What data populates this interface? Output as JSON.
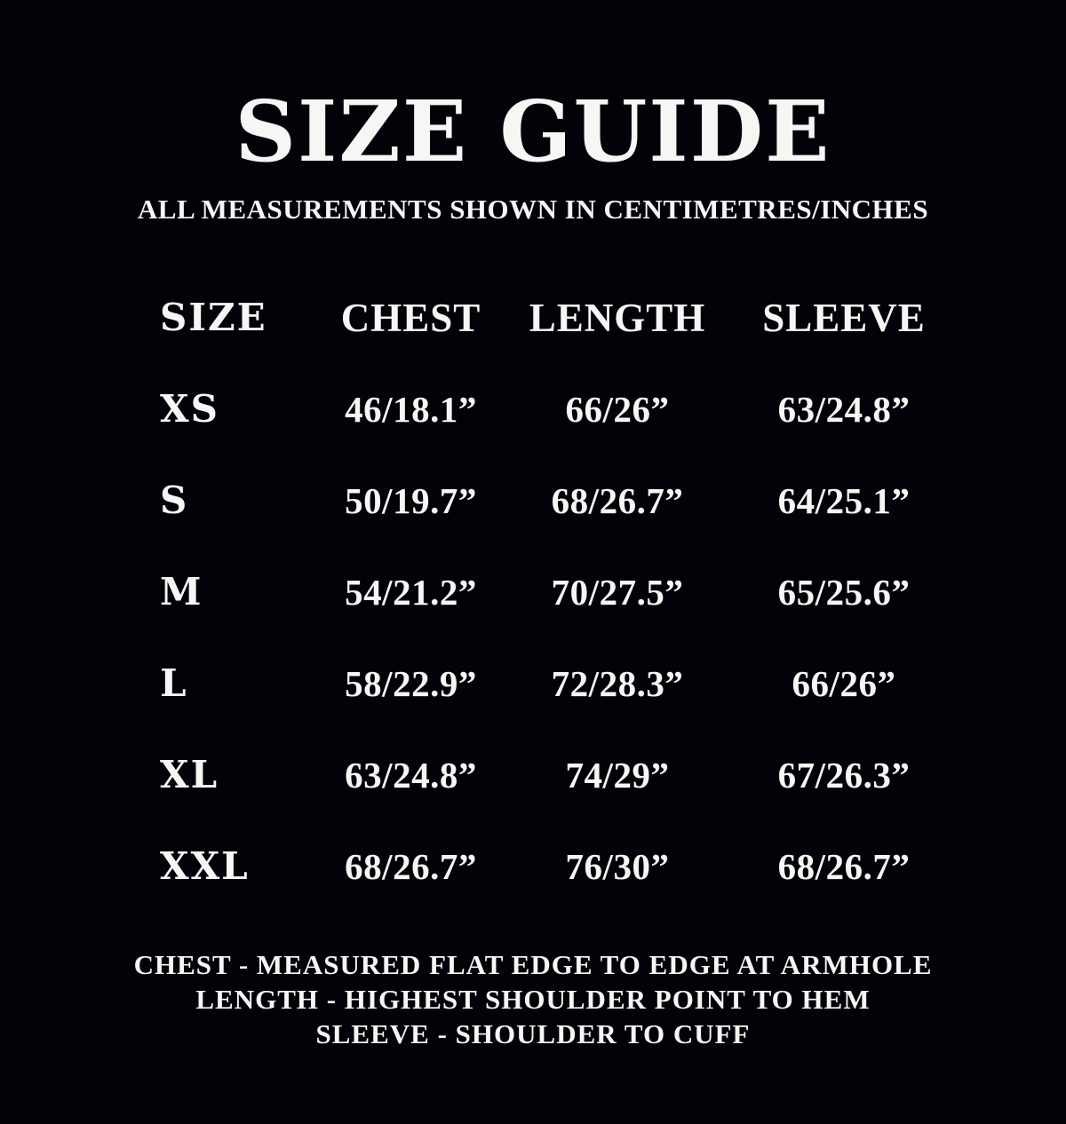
{
  "colors": {
    "background": "#020209",
    "text": "#f6f6f4"
  },
  "header": {
    "title": "SIZE GUIDE",
    "subtitle": "ALL MEASUREMENTS SHOWN IN CENTIMETRES/INCHES"
  },
  "table": {
    "columns": [
      "SIZE",
      "CHEST",
      "LENGTH",
      "SLEEVE"
    ],
    "rows": [
      {
        "size": "XS",
        "chest": "46/18.1”",
        "length": "66/26”",
        "sleeve": "63/24.8”"
      },
      {
        "size": "S",
        "chest": "50/19.7”",
        "length": "68/26.7”",
        "sleeve": "64/25.1”"
      },
      {
        "size": "M",
        "chest": "54/21.2”",
        "length": "70/27.5”",
        "sleeve": "65/25.6”"
      },
      {
        "size": "L",
        "chest": "58/22.9”",
        "length": "72/28.3”",
        "sleeve": "66/26”"
      },
      {
        "size": "XL",
        "chest": "63/24.8”",
        "length": "74/29”",
        "sleeve": "67/26.3”"
      },
      {
        "size": "XXL",
        "chest": "68/26.7”",
        "length": "76/30”",
        "sleeve": "68/26.7”"
      }
    ]
  },
  "footer": {
    "lines": [
      "CHEST - MEASURED FLAT EDGE TO EDGE AT ARMHOLE",
      "LENGTH - HIGHEST SHOULDER POINT TO HEM",
      "SLEEVE - SHOULDER TO CUFF"
    ]
  }
}
